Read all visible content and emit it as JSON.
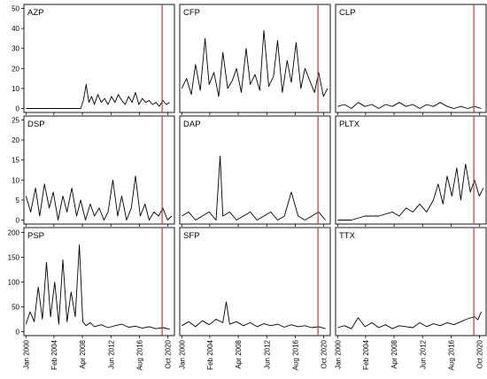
{
  "chart_data": {
    "type": "line",
    "layout": "3x3 small multiples",
    "xlabel": "",
    "ylabel": "",
    "x_ticks": [
      "Jan 2000",
      "Feb 2004",
      "Apr 2008",
      "Jun 2012",
      "Aug 2016",
      "Oct 2020"
    ],
    "x_tick_years": [
      2000.0,
      2004.08,
      2008.25,
      2012.42,
      2016.58,
      2020.75
    ],
    "x_range": [
      1999.7,
      2021.7
    ],
    "marker_line": {
      "x": 2019.9,
      "color": "#c0392b"
    },
    "line_color": "#000000",
    "y_scales": [
      {
        "row": 1,
        "ylim": [
          -2,
          52
        ],
        "ticks": [
          0,
          10,
          20,
          30,
          40,
          50
        ]
      },
      {
        "row": 2,
        "ylim": [
          -1,
          26
        ],
        "ticks": [
          0,
          5,
          10,
          15,
          20,
          25
        ]
      },
      {
        "row": 3,
        "ylim": [
          -8,
          210
        ],
        "ticks": [
          0,
          50,
          100,
          150,
          200
        ]
      }
    ],
    "panels": [
      {
        "title": "AZP",
        "row": 1,
        "col": 1,
        "x": [
          2000,
          2004,
          2008,
          2008.4,
          2008.8,
          2009.2,
          2009.6,
          2010,
          2010.5,
          2011,
          2011.5,
          2012,
          2012.5,
          2013,
          2013.5,
          2014,
          2014.5,
          2015,
          2015.5,
          2016,
          2016.5,
          2017,
          2017.5,
          2018,
          2018.5,
          2019,
          2019.5,
          2020,
          2020.5,
          2021
        ],
        "y": [
          0,
          0,
          0,
          4,
          12,
          3,
          6,
          2,
          7,
          3,
          5,
          2,
          6,
          3,
          7,
          4,
          2,
          6,
          3,
          8,
          2,
          5,
          3,
          4,
          2,
          3,
          1,
          4,
          2,
          3
        ]
      },
      {
        "title": "CFP",
        "row": 1,
        "col": 2,
        "x": [
          2000,
          2000.7,
          2001.4,
          2002,
          2002.7,
          2003.4,
          2004,
          2004.7,
          2005.4,
          2006,
          2006.7,
          2007.4,
          2008,
          2008.7,
          2009.4,
          2010,
          2010.7,
          2011.4,
          2012,
          2012.7,
          2013.4,
          2014,
          2014.7,
          2015.4,
          2016,
          2016.7,
          2017.4,
          2018,
          2018.7,
          2019.4,
          2020,
          2020.7,
          2021.3
        ],
        "y": [
          10,
          15,
          7,
          22,
          9,
          35,
          12,
          18,
          6,
          28,
          10,
          14,
          20,
          8,
          30,
          12,
          17,
          9,
          39,
          11,
          16,
          34,
          8,
          24,
          13,
          33,
          10,
          20,
          14,
          8,
          18,
          6,
          10
        ]
      },
      {
        "title": "CLP",
        "row": 1,
        "col": 3,
        "x": [
          2000,
          2001,
          2002,
          2003,
          2004,
          2005,
          2006,
          2007,
          2008,
          2009,
          2010,
          2011,
          2012,
          2013,
          2014,
          2015,
          2016,
          2017,
          2018,
          2019,
          2020,
          2021
        ],
        "y": [
          1,
          2,
          0,
          3,
          1,
          2,
          0,
          2,
          1,
          3,
          1,
          2,
          0,
          2,
          1,
          3,
          1,
          0,
          1,
          0,
          1,
          0
        ]
      },
      {
        "title": "DSP",
        "row": 2,
        "col": 1,
        "x": [
          2000,
          2000.7,
          2001.4,
          2002,
          2002.7,
          2003.4,
          2004,
          2004.7,
          2005.4,
          2006,
          2006.7,
          2007.4,
          2008,
          2008.7,
          2009.4,
          2010,
          2010.7,
          2011.4,
          2012,
          2012.7,
          2013.4,
          2014,
          2014.7,
          2015.4,
          2016,
          2016.7,
          2017.4,
          2018,
          2018.7,
          2019.4,
          2020,
          2020.7,
          2021.3
        ],
        "y": [
          6,
          2,
          8,
          1,
          9,
          3,
          7,
          0,
          6,
          2,
          8,
          1,
          5,
          0,
          4,
          1,
          3,
          0,
          2,
          10,
          1,
          6,
          0,
          3,
          11,
          1,
          4,
          0,
          2,
          1,
          3,
          0,
          1
        ]
      },
      {
        "title": "DAP",
        "row": 2,
        "col": 2,
        "x": [
          2000,
          2001,
          2002,
          2003,
          2004,
          2005,
          2005.6,
          2006,
          2007,
          2008,
          2009,
          2010,
          2011,
          2012,
          2013,
          2014,
          2015,
          2016,
          2017,
          2018,
          2019,
          2020,
          2021
        ],
        "y": [
          1,
          2,
          0,
          1,
          2,
          0,
          16,
          1,
          2,
          0,
          1,
          2,
          0,
          1,
          2,
          0,
          1,
          7,
          1,
          0,
          1,
          2,
          0
        ]
      },
      {
        "title": "PLTX",
        "row": 2,
        "col": 3,
        "x": [
          2000,
          2002,
          2004,
          2006,
          2008,
          2009,
          2010,
          2011,
          2012,
          2013,
          2014,
          2014.7,
          2015.4,
          2016,
          2016.7,
          2017.4,
          2018,
          2018.7,
          2019.4,
          2020,
          2020.7,
          2021.3
        ],
        "y": [
          0,
          0,
          1,
          1,
          2,
          1,
          3,
          2,
          4,
          2,
          5,
          9,
          4,
          11,
          6,
          13,
          5,
          14,
          7,
          10,
          6,
          8
        ]
      },
      {
        "title": "PSP",
        "row": 3,
        "col": 1,
        "x": [
          2000,
          2000.6,
          2001.2,
          2001.8,
          2002.4,
          2003,
          2003.6,
          2004.2,
          2004.8,
          2005.4,
          2006,
          2006.6,
          2007.2,
          2007.8,
          2008.3,
          2008.8,
          2009.4,
          2010,
          2011,
          2012,
          2013,
          2014,
          2015,
          2016,
          2017,
          2018,
          2019,
          2020,
          2021
        ],
        "y": [
          15,
          40,
          20,
          90,
          25,
          140,
          30,
          100,
          15,
          145,
          20,
          80,
          30,
          175,
          20,
          12,
          18,
          10,
          14,
          8,
          12,
          15,
          9,
          11,
          7,
          10,
          6,
          8,
          5
        ]
      },
      {
        "title": "SFP",
        "row": 3,
        "col": 2,
        "x": [
          2000,
          2001,
          2002,
          2003,
          2004,
          2005,
          2006,
          2006.5,
          2007,
          2008,
          2009,
          2010,
          2011,
          2012,
          2013,
          2014,
          2015,
          2016,
          2017,
          2018,
          2019,
          2020,
          2021
        ],
        "y": [
          12,
          20,
          10,
          22,
          14,
          25,
          18,
          60,
          15,
          20,
          12,
          18,
          10,
          16,
          12,
          15,
          9,
          14,
          10,
          12,
          8,
          10,
          6
        ]
      },
      {
        "title": "TTX",
        "row": 3,
        "col": 3,
        "x": [
          2000,
          2001,
          2002,
          2003,
          2004,
          2005,
          2006,
          2007,
          2008,
          2009,
          2010,
          2011,
          2012,
          2013,
          2014,
          2015,
          2016,
          2017,
          2018,
          2019,
          2020,
          2020.5,
          2021
        ],
        "y": [
          8,
          12,
          6,
          28,
          10,
          18,
          8,
          14,
          6,
          12,
          10,
          8,
          18,
          10,
          16,
          12,
          18,
          14,
          20,
          26,
          30,
          24,
          40
        ]
      }
    ]
  }
}
